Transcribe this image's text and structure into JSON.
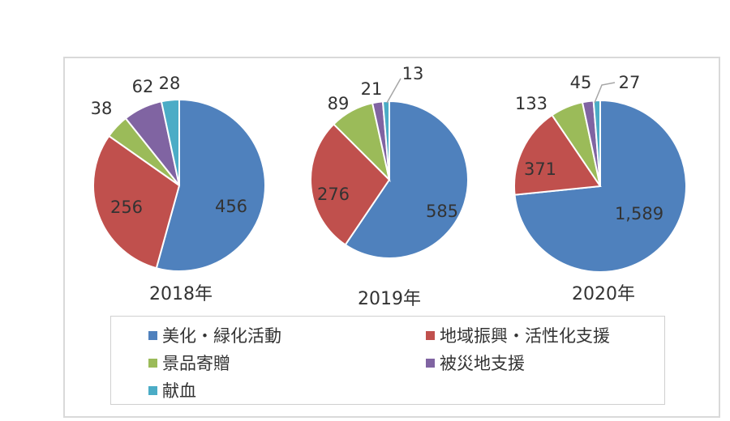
{
  "chart_data": {
    "type": "pie",
    "categories": [
      "美化・緑化活動",
      "地域振興・活性化支援",
      "景品寄贈",
      "被災地支援",
      "献血"
    ],
    "colors": [
      "#4f81bd",
      "#c0504d",
      "#9bbb59",
      "#8064a2",
      "#4bacc6"
    ],
    "legend_position": "bottom",
    "pies": [
      {
        "year_label": "2018年",
        "values": [
          456,
          256,
          38,
          62,
          28
        ],
        "value_labels": [
          "456",
          "256",
          "38",
          "62",
          "28"
        ]
      },
      {
        "year_label": "2019年",
        "values": [
          585,
          276,
          89,
          21,
          13
        ],
        "value_labels": [
          "585",
          "276",
          "89",
          "21",
          "13"
        ]
      },
      {
        "year_label": "2020年",
        "values": [
          1589,
          371,
          133,
          45,
          27
        ],
        "value_labels": [
          "1,589",
          "371",
          "133",
          "45",
          "27"
        ]
      }
    ]
  }
}
